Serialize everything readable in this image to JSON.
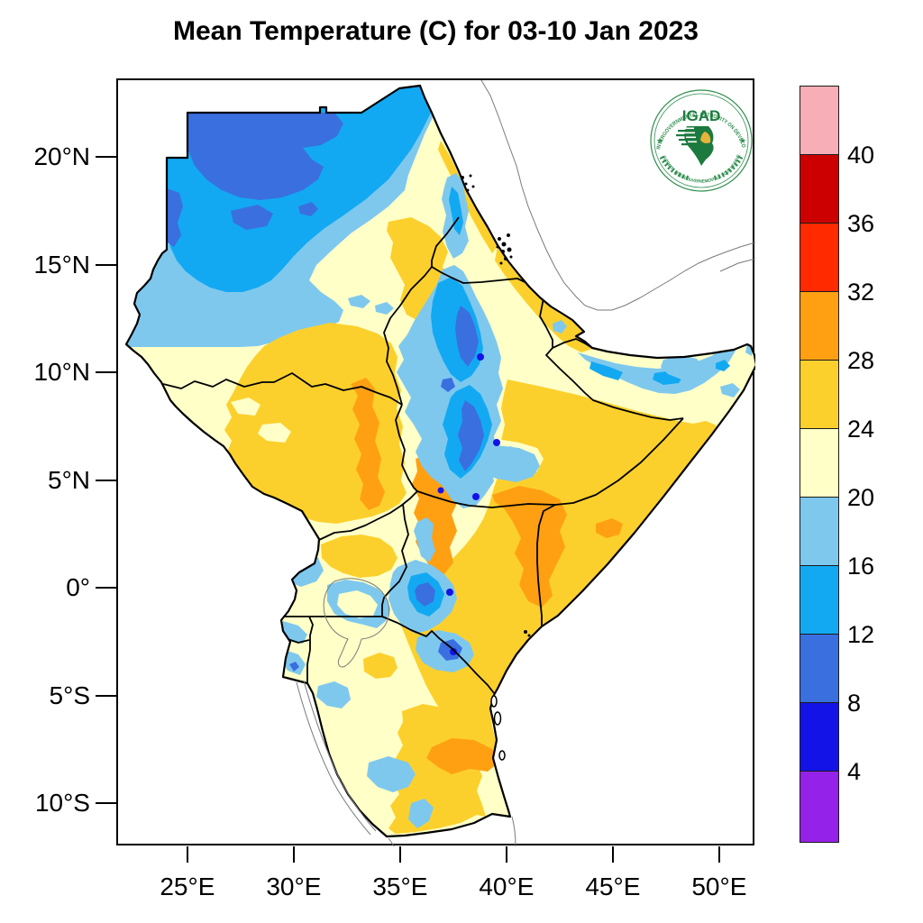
{
  "title": "Mean Temperature (C) for 03-10 Jan 2023",
  "axes": {
    "lat_ticks": [
      {
        "label": "20°N",
        "deg": 20
      },
      {
        "label": "15°N",
        "deg": 15
      },
      {
        "label": "10°N",
        "deg": 10
      },
      {
        "label": "5°N",
        "deg": 5
      },
      {
        "label": "0°",
        "deg": 0
      },
      {
        "label": "5°S",
        "deg": -5
      },
      {
        "label": "10°S",
        "deg": -10
      }
    ],
    "lon_ticks": [
      {
        "label": "25°E",
        "deg": 25
      },
      {
        "label": "30°E",
        "deg": 30
      },
      {
        "label": "35°E",
        "deg": 35
      },
      {
        "label": "40°E",
        "deg": 40
      },
      {
        "label": "45°E",
        "deg": 45
      },
      {
        "label": "50°E",
        "deg": 50
      }
    ]
  },
  "colorbar": {
    "unit": "C",
    "boundary_labels": [
      "40",
      "36",
      "32",
      "28",
      "24",
      "20",
      "16",
      "12",
      "8",
      "4"
    ],
    "bands": [
      {
        "id": "gt40",
        "range": ">40",
        "color": "#F8AEB6"
      },
      {
        "id": "36_40",
        "range": "36-40",
        "color": "#CC0000"
      },
      {
        "id": "32_36",
        "range": "32-36",
        "color": "#FF2A00"
      },
      {
        "id": "28_32",
        "range": "28-32",
        "color": "#FFA013"
      },
      {
        "id": "24_28",
        "range": "24-28",
        "color": "#FCD02C"
      },
      {
        "id": "20_24",
        "range": "20-24",
        "color": "#FFFFC8"
      },
      {
        "id": "16_20",
        "range": "16-20",
        "color": "#7EC8EE"
      },
      {
        "id": "12_16",
        "range": "12-16",
        "color": "#12A9F2"
      },
      {
        "id": "8_12",
        "range": "8-12",
        "color": "#3A6FE0"
      },
      {
        "id": "4_8",
        "range": "4-8",
        "color": "#1313E8"
      },
      {
        "id": "lt4",
        "range": "<4",
        "color": "#9522E8"
      }
    ],
    "frame_color": "#000000",
    "outside_region_color": "#FFFFFF",
    "country_border_color": "#000000",
    "non_igad_line_color": "#7A7A7A"
  },
  "logo": {
    "name": "IGAD",
    "arc_top": "INTERGOVERNMENTAL AUTHORITY ON DEVELOPMENT",
    "arc_bottom": "AUTORITE INTERGOUVERNEMENTALE POUR LE DEVELOPPEMENT",
    "green": "#2E8F4E",
    "gold": "#E8B33A"
  }
}
